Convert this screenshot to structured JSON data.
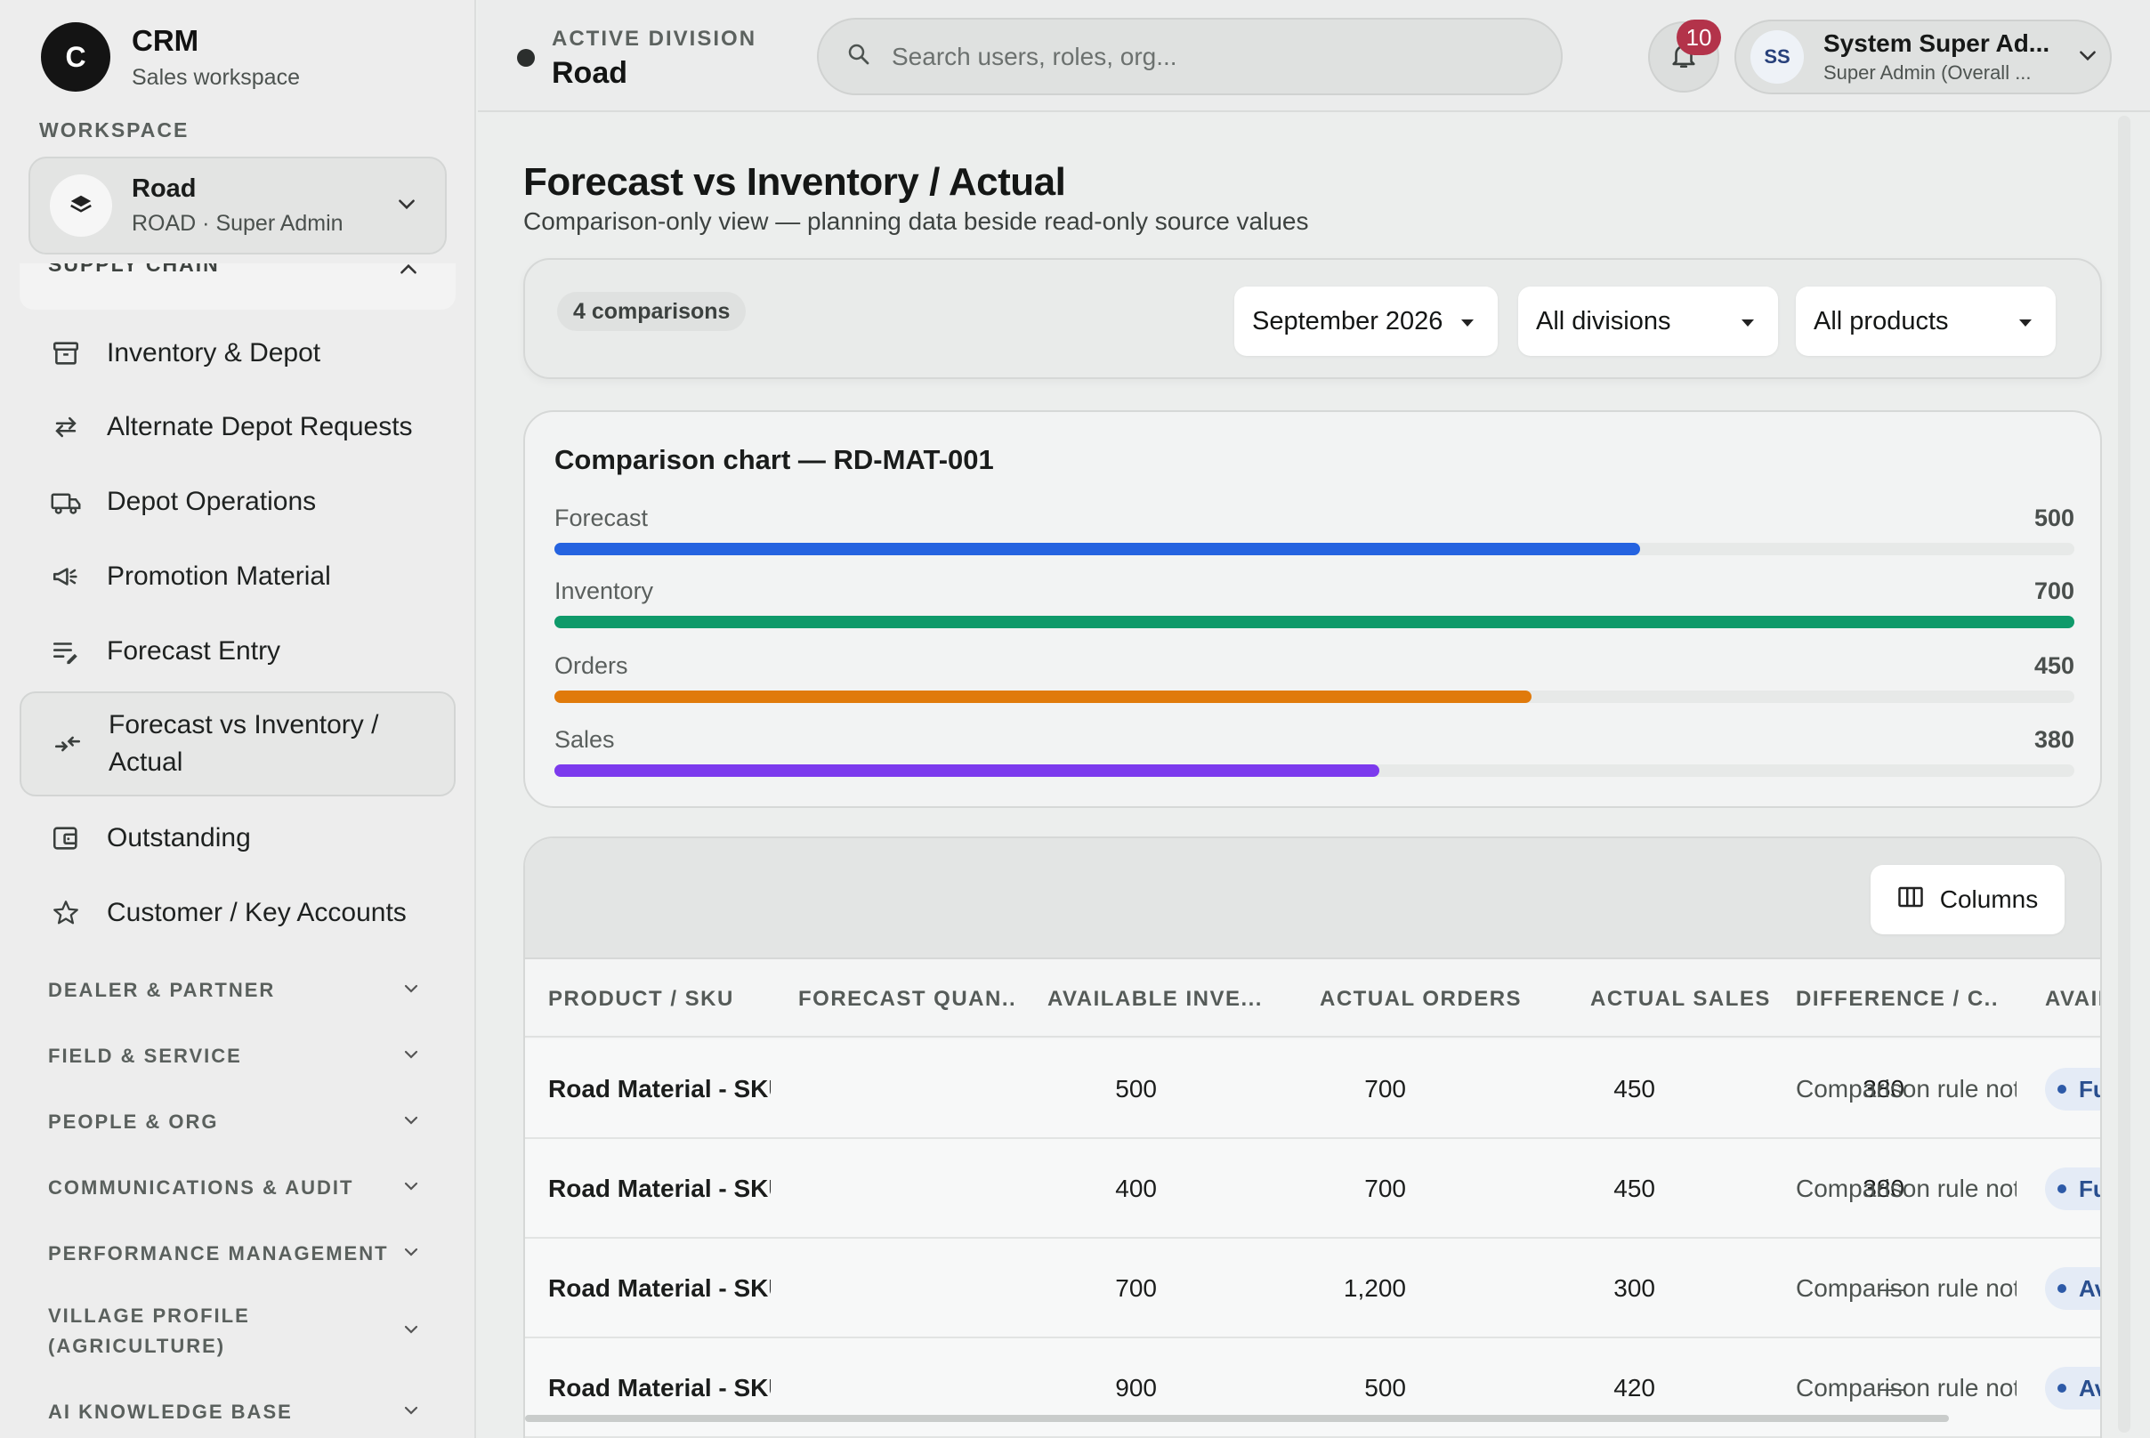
{
  "brand": {
    "logo_letter": "C",
    "title": "CRM",
    "subtitle": "Sales workspace"
  },
  "workspace": {
    "section_label": "WORKSPACE",
    "name": "Road",
    "detail": "ROAD · Super Admin"
  },
  "sidebar": {
    "current_section": "SUPPLY CHAIN",
    "items": [
      {
        "label": "Inventory & Depot",
        "icon": "archive-icon"
      },
      {
        "label": "Alternate Depot Requests",
        "icon": "swap-arrows-icon"
      },
      {
        "label": "Depot Operations",
        "icon": "truck-icon"
      },
      {
        "label": "Promotion Material",
        "icon": "megaphone-icon"
      },
      {
        "label": "Forecast Entry",
        "icon": "list-edit-icon"
      },
      {
        "label": "Forecast vs Inventory / Actual",
        "icon": "compare-arrows-icon",
        "active": true
      },
      {
        "label": "Outstanding",
        "icon": "wallet-icon"
      },
      {
        "label": "Customer / Key Accounts",
        "icon": "star-icon"
      }
    ],
    "groups": [
      "DEALER & PARTNER",
      "FIELD & SERVICE",
      "PEOPLE & ORG",
      "COMMUNICATIONS & AUDIT",
      "PERFORMANCE MANAGEMENT",
      "VILLAGE PROFILE (AGRICULTURE)",
      "AI KNOWLEDGE BASE"
    ]
  },
  "topbar": {
    "division_kicker": "ACTIVE DIVISION",
    "division_name": "Road",
    "search_placeholder": "Search users, roles, org...",
    "notification_count": "10",
    "user": {
      "initials": "SS",
      "name": "System Super Ad...",
      "role": "Super Admin (Overall ..."
    }
  },
  "page": {
    "title": "Forecast vs Inventory / Actual",
    "subtitle": "Comparison-only view — planning data beside read-only source values"
  },
  "filters": {
    "count": "4 comparisons",
    "period": "September 2026",
    "division": "All divisions",
    "product": "All products"
  },
  "chart_data": {
    "type": "bar",
    "title": "Comparison chart — RD-MAT-001",
    "categories": [
      "Forecast",
      "Inventory",
      "Orders",
      "Sales"
    ],
    "values": [
      500,
      700,
      450,
      380
    ],
    "value_labels": [
      "500",
      "700",
      "450",
      "380"
    ],
    "colors": [
      "#2563e0",
      "#0f9a6a",
      "#e07a0b",
      "#7c3aed"
    ],
    "xlim": [
      0,
      700
    ],
    "orientation": "horizontal"
  },
  "table": {
    "columns_button": "Columns",
    "headers": [
      "PRODUCT / SKU",
      "FORECAST QUAN...",
      "AVAILABLE INVE...",
      "ACTUAL ORDERS",
      "ACTUAL SALES",
      "DIFFERENCE / C...",
      "AVAIL"
    ],
    "rows": [
      {
        "product": "Road Material - SKU A",
        "forecast": "500",
        "inventory": "700",
        "orders": "450",
        "sales": "380",
        "difference": "Comparison rule not c",
        "status": "Fu"
      },
      {
        "product": "Road Material - SKU A",
        "forecast": "400",
        "inventory": "700",
        "orders": "450",
        "sales": "380",
        "difference": "Comparison rule not c",
        "status": "Fu"
      },
      {
        "product": "Road Material - SKU A",
        "forecast": "700",
        "inventory": "1,200",
        "orders": "300",
        "sales": "—",
        "difference": "Comparison rule not c",
        "status": "Av"
      },
      {
        "product": "Road Material - SKU I",
        "forecast": "900",
        "inventory": "500",
        "orders": "420",
        "sales": "—",
        "difference": "Comparison rule not c",
        "status": "Av"
      }
    ]
  }
}
